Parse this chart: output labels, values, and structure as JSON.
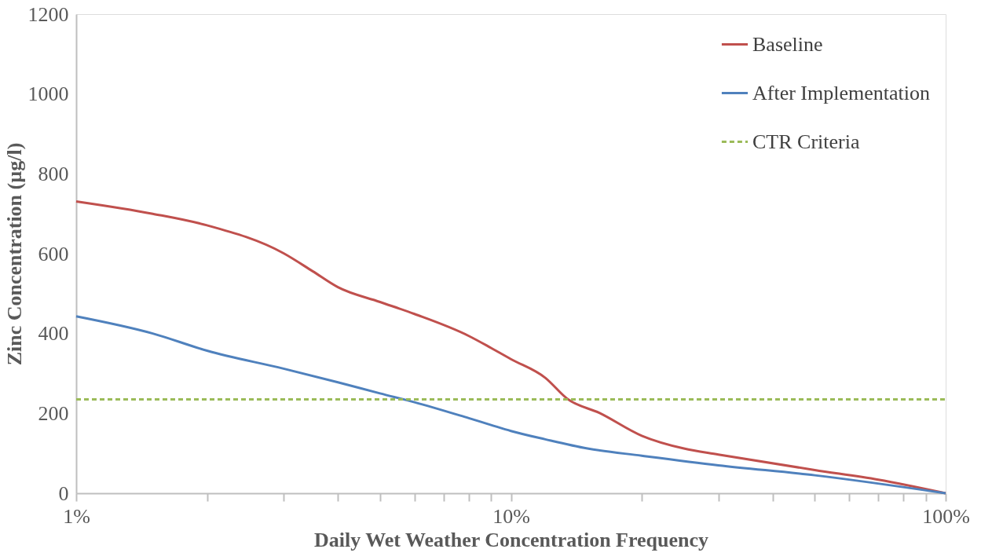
{
  "chart_data": {
    "type": "line",
    "xlabel": "Daily Wet Weather Concentration Frequency",
    "ylabel": "Zinc Concentration (µg/l)",
    "log": "x",
    "xlim": [
      1,
      100
    ],
    "ylim": [
      0,
      1200
    ],
    "xticks": [
      {
        "value": 1,
        "label": "1%"
      },
      {
        "value": 2,
        "label": null
      },
      {
        "value": 3,
        "label": null
      },
      {
        "value": 4,
        "label": null
      },
      {
        "value": 5,
        "label": null
      },
      {
        "value": 6,
        "label": null
      },
      {
        "value": 7,
        "label": null
      },
      {
        "value": 8,
        "label": null
      },
      {
        "value": 9,
        "label": null
      },
      {
        "value": 10,
        "label": "10%"
      },
      {
        "value": 20,
        "label": null
      },
      {
        "value": 30,
        "label": null
      },
      {
        "value": 40,
        "label": null
      },
      {
        "value": 50,
        "label": null
      },
      {
        "value": 60,
        "label": null
      },
      {
        "value": 70,
        "label": null
      },
      {
        "value": 80,
        "label": null
      },
      {
        "value": 90,
        "label": null
      },
      {
        "value": 100,
        "label": "100%"
      }
    ],
    "yticks": [
      0,
      200,
      400,
      600,
      800,
      1000,
      1200
    ],
    "grid": false,
    "legend": "top right",
    "marker": "none",
    "series": [
      {
        "name": "Baseline",
        "color": "#c0504d",
        "line_style": "solid",
        "x": [
          1,
          1.5,
          2,
          3,
          3.5,
          4,
          5,
          6,
          8,
          9,
          10,
          12,
          13.5,
          16,
          20,
          25,
          30,
          50,
          70,
          100
        ],
        "values": [
          731,
          700,
          671,
          601,
          556,
          516,
          479,
          449,
          394,
          364,
          336,
          289,
          236,
          201,
          144,
          112,
          97,
          58,
          34,
          0
        ]
      },
      {
        "name": "After Implementation",
        "color": "#4f81bd",
        "line_style": "solid",
        "x": [
          1,
          1.5,
          2,
          3,
          4,
          5,
          6,
          8,
          9,
          10,
          12,
          15,
          20,
          30,
          50,
          100
        ],
        "values": [
          443,
          400,
          357,
          312,
          278,
          250,
          228,
          188,
          171,
          156,
          135,
          112,
          94,
          70,
          45,
          0
        ]
      },
      {
        "name": "CTR Criteria",
        "color": "#9bbb59",
        "line_style": "dashed",
        "x": [
          1,
          100
        ],
        "values": [
          235,
          235
        ]
      }
    ]
  }
}
